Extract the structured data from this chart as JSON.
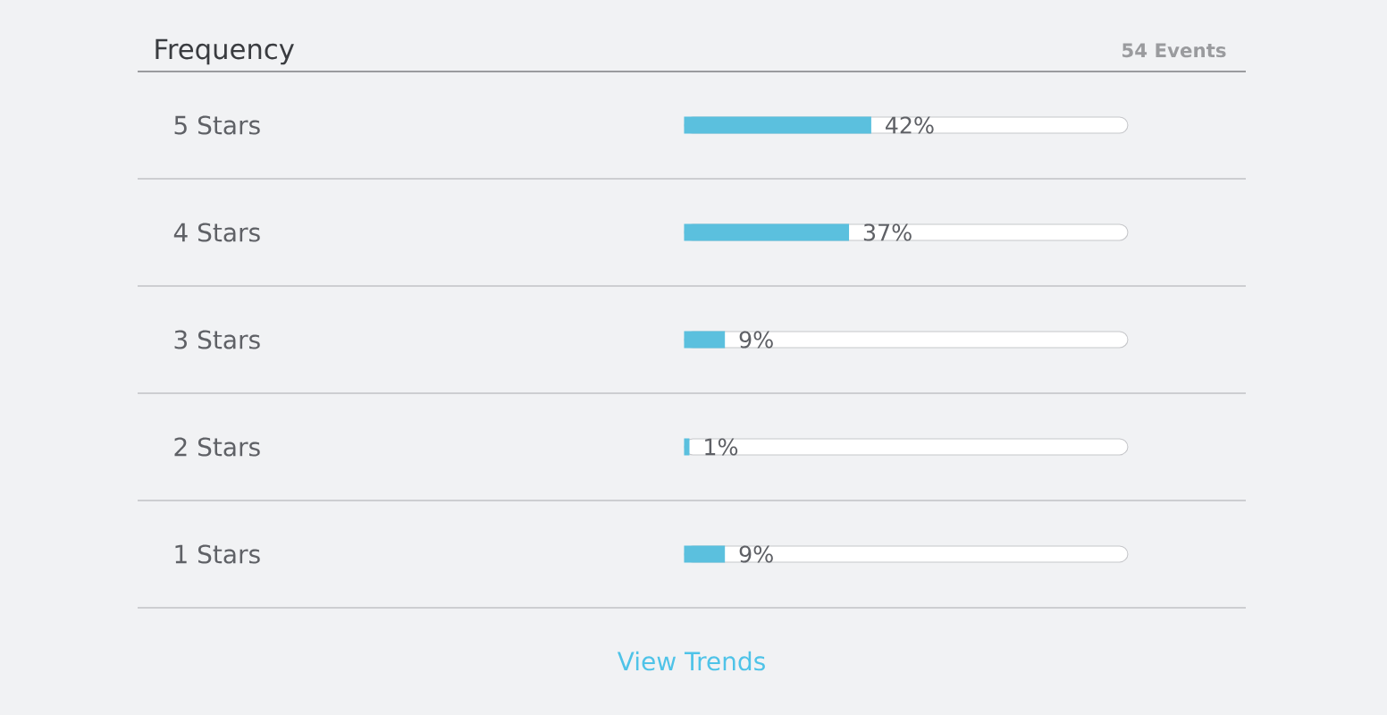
{
  "chart_data": {
    "type": "bar",
    "orientation": "horizontal",
    "title": "Frequency",
    "subtitle": "54 Events",
    "categories": [
      "5 Stars",
      "4 Stars",
      "3 Stars",
      "2 Stars",
      "1 Stars"
    ],
    "values": [
      42,
      37,
      9,
      1,
      9
    ],
    "value_labels": [
      "42%",
      "37%",
      "9%",
      "1%",
      "9%"
    ],
    "color": "#5bc0de",
    "xlim": [
      0,
      100
    ],
    "tick_labels": "y",
    "annotations": [
      "View Trends"
    ]
  }
}
